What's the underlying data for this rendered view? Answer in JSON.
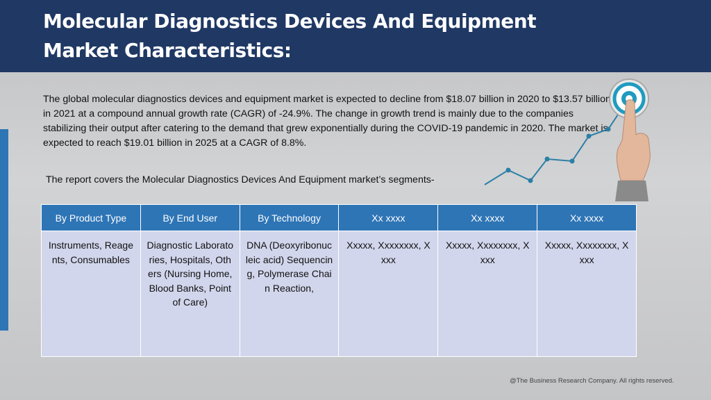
{
  "header": {
    "title": "Molecular Diagnostics Devices And Equipment Market Characteristics:"
  },
  "body": {
    "paragraph": "The global molecular diagnostics devices and equipment market is expected to decline from $18.07 billion in 2020 to $13.57 billion in 2021 at a compound annual growth rate (CAGR) of -24.9%. The change in growth trend is mainly due to the companies stabilizing their output after catering to the demand that grew exponentially during the COVID-19 pandemic in 2020. The market is expected to reach $19.01 billion in 2025 at a CAGR of 8.8%.",
    "segments_intro": "The report covers the Molecular Diagnostics Devices And Equipment market’s segments-"
  },
  "table": {
    "headers": [
      "By Product Type",
      "By End User",
      "By Technology",
      "Xx xxxx",
      "Xx xxxx",
      "Xx xxxx"
    ],
    "cells": [
      "Instruments, Reagents, Consumables",
      "Diagnostic Laboratories, Hospitals, Others (Nursing Home, Blood Banks, Point of Care)",
      "DNA (Deoxyribonucleic acid) Sequencing, Polymerase Chain Reaction,",
      "Xxxxx, Xxxxxxxx, Xxxx",
      "Xxxxx, Xxxxxxxx, Xxxx",
      "Xxxxx, Xxxxxxxx, Xxxx"
    ]
  },
  "footer": {
    "copyright": "@The Business Research Company. All rights reserved."
  },
  "colors": {
    "header_bg": "#1f3864",
    "table_header_bg": "#2e75b6",
    "table_cell_bg": "#d2d6ec",
    "accent_bar": "#2e75b6",
    "graph_line": "#2b7fa6"
  },
  "icons": [
    "target-icon",
    "pointing-hand-icon",
    "growth-line-icon"
  ]
}
